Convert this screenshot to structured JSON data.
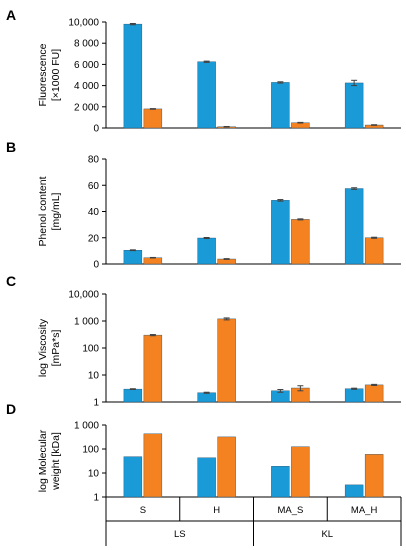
{
  "colors": {
    "series_a": "#1a9bd7",
    "series_b": "#f58220",
    "axis": "#000000",
    "error_bar": "#404040"
  },
  "categories": [
    "S",
    "H",
    "MA_S",
    "MA_H"
  ],
  "groups": [
    {
      "label": "LS",
      "categories": [
        "S",
        "H"
      ]
    },
    {
      "label": "KL",
      "categories": [
        "MA_S",
        "MA_H"
      ]
    }
  ],
  "chart_data": [
    {
      "panel": "A",
      "type": "bar",
      "ylabel": [
        "Fluorescence",
        "[×1000 FU]"
      ],
      "scale": "linear",
      "ylim": [
        0,
        10000
      ],
      "yticks": [
        0,
        2000,
        4000,
        6000,
        8000,
        10000
      ],
      "ytick_labels": [
        "0",
        "2 000",
        "4 000",
        "6 000",
        "8 000",
        "10,000"
      ],
      "categories": [
        "S",
        "H",
        "MA_S",
        "MA_H"
      ],
      "series": [
        {
          "values": [
            9800,
            6250,
            4300,
            4250
          ],
          "errors": [
            60,
            60,
            60,
            250
          ]
        },
        {
          "values": [
            1800,
            120,
            500,
            280
          ],
          "errors": [
            30,
            20,
            30,
            30
          ]
        }
      ]
    },
    {
      "panel": "B",
      "type": "bar",
      "ylabel": [
        "Phenol content",
        "[mg/mL]"
      ],
      "scale": "linear",
      "ylim": [
        0,
        80
      ],
      "yticks": [
        0,
        20,
        40,
        60,
        80
      ],
      "ytick_labels": [
        "0",
        "20",
        "40",
        "60",
        "80"
      ],
      "categories": [
        "S",
        "H",
        "MA_S",
        "MA_H"
      ],
      "series": [
        {
          "values": [
            10.5,
            19.8,
            48.5,
            57.5
          ],
          "errors": [
            0.3,
            0.4,
            0.6,
            0.6
          ]
        },
        {
          "values": [
            4.8,
            3.8,
            34,
            20
          ],
          "errors": [
            0.2,
            0.3,
            0.4,
            0.4
          ]
        }
      ]
    },
    {
      "panel": "C",
      "type": "bar",
      "ylabel": [
        "log Viscosity",
        "[mPa*s]"
      ],
      "scale": "log",
      "ylim": [
        1,
        10000
      ],
      "yticks": [
        1,
        10,
        100,
        1000,
        10000
      ],
      "ytick_labels": [
        "1",
        "10",
        "100",
        "1 000",
        "10,000"
      ],
      "categories": [
        "S",
        "H",
        "MA_S",
        "MA_H"
      ],
      "series": [
        {
          "values": [
            3.0,
            2.2,
            2.6,
            3.1
          ],
          "errors": [
            0.1,
            0.1,
            0.3,
            0.15
          ]
        },
        {
          "values": [
            300,
            1200,
            3.3,
            4.3
          ],
          "errors": [
            15,
            100,
            0.7,
            0.2
          ]
        }
      ]
    },
    {
      "panel": "D",
      "type": "bar",
      "ylabel": [
        "log Molecular",
        "weight [kDa]"
      ],
      "scale": "log",
      "ylim": [
        1,
        1000
      ],
      "yticks": [
        1,
        10,
        100,
        1000
      ],
      "ytick_labels": [
        "1",
        "10",
        "100",
        "1 000"
      ],
      "categories": [
        "S",
        "H",
        "MA_S",
        "MA_H"
      ],
      "series": [
        {
          "values": [
            48,
            43,
            19,
            3.2
          ],
          "errors": [
            0,
            0,
            0,
            0
          ]
        },
        {
          "values": [
            430,
            320,
            125,
            60
          ],
          "errors": [
            0,
            0,
            0,
            0
          ]
        }
      ]
    }
  ]
}
